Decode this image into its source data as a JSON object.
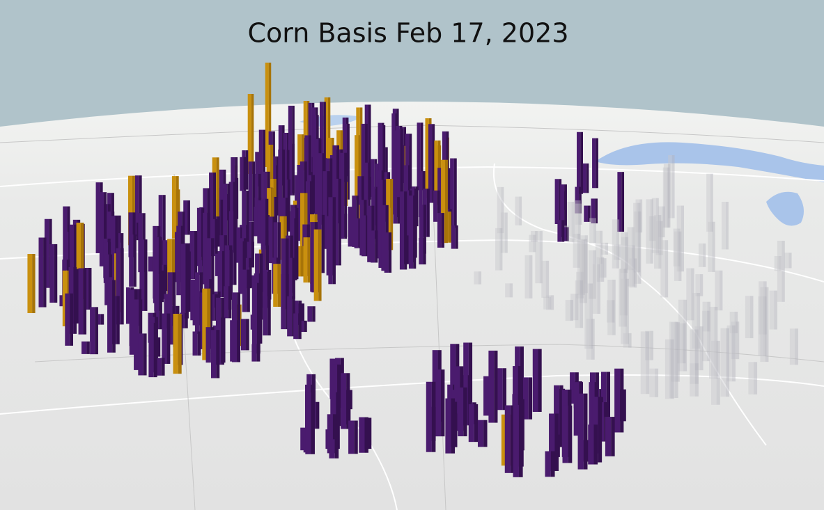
{
  "title": "Corn Basis Feb 17, 2023"
}
